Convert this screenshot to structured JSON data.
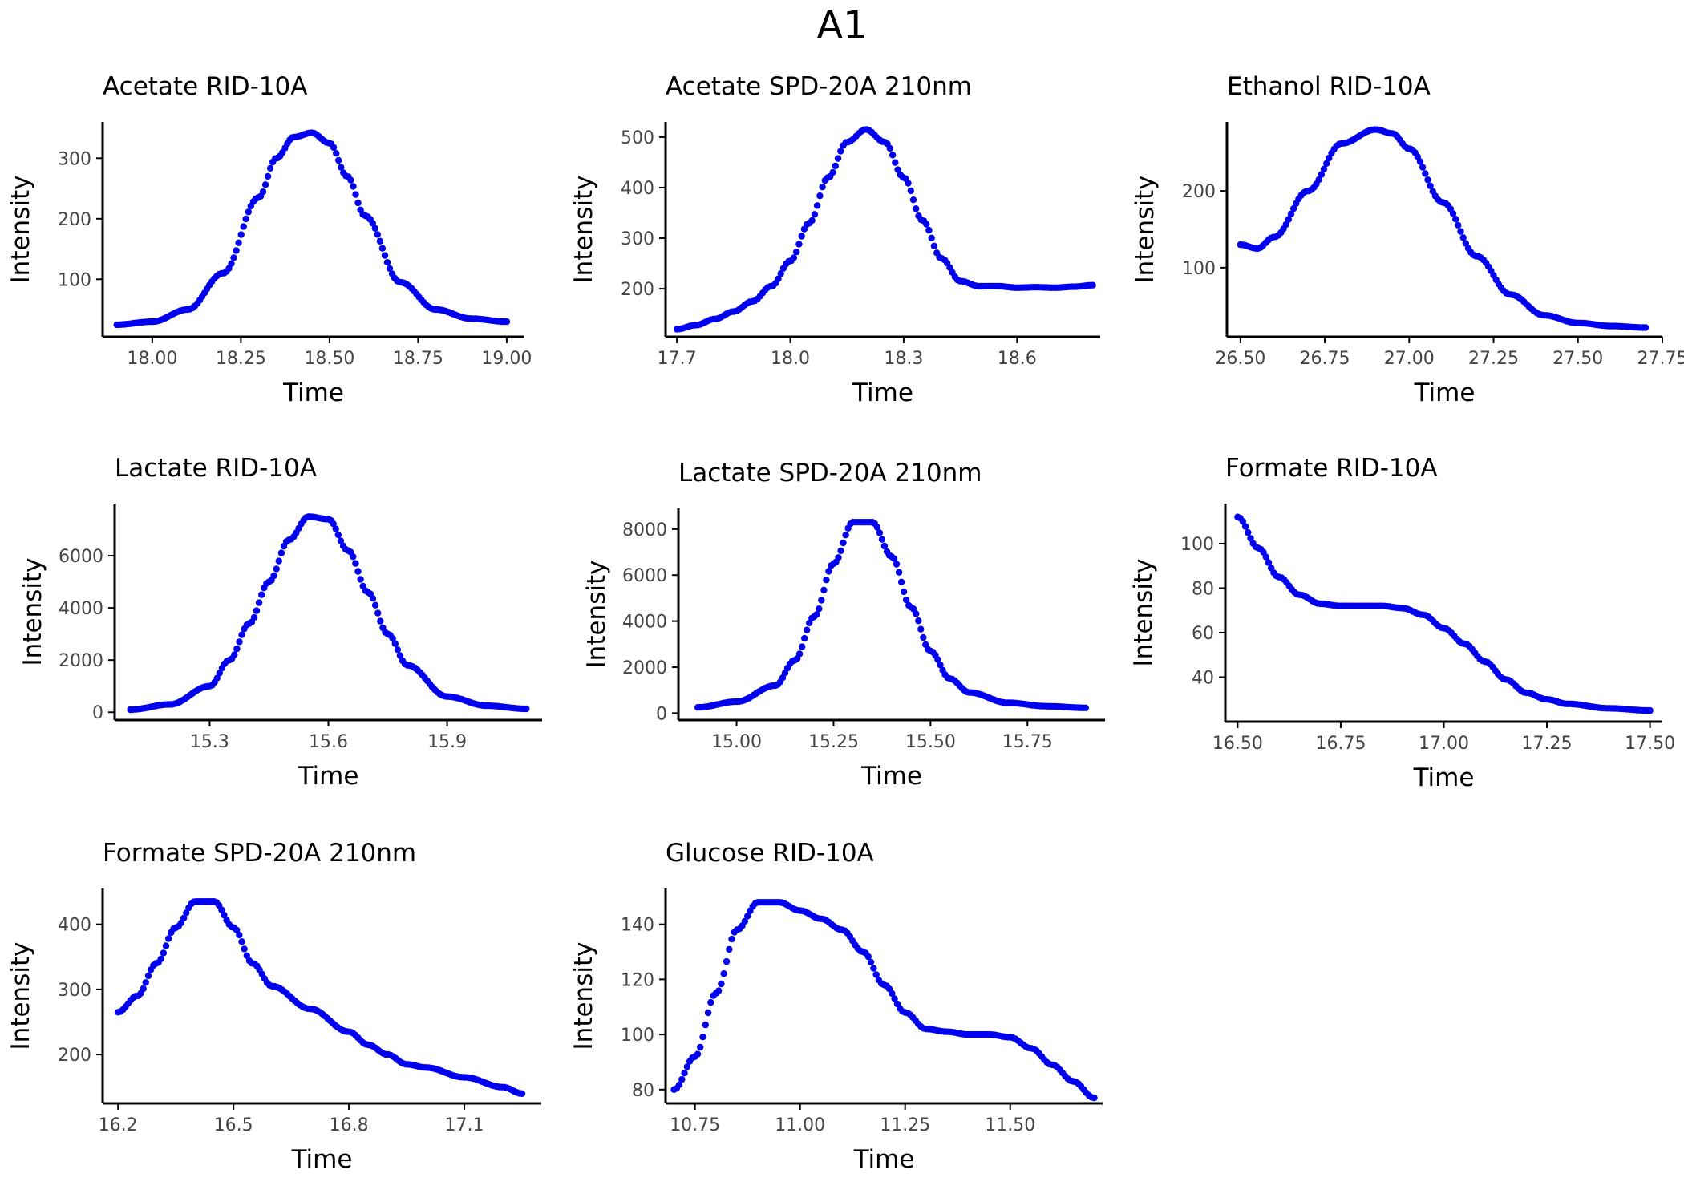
{
  "title": "A1",
  "colors": {
    "series": "#0000ee",
    "axis": "#000000",
    "tick_label": "#444444"
  },
  "chart_data": [
    {
      "type": "scatter",
      "title": "Acetate RID-10A",
      "xlabel": "Time",
      "ylabel": "Intensity",
      "xlim": [
        17.86,
        19.05
      ],
      "ylim": [
        5,
        360
      ],
      "xticks": [
        18.0,
        18.25,
        18.5,
        18.75,
        19.0
      ],
      "xtick_labels": [
        "18.00",
        "18.25",
        "18.50",
        "18.75",
        "19.00"
      ],
      "yticks": [
        100,
        200,
        300
      ],
      "ytick_labels": [
        "100",
        "200",
        "300"
      ],
      "series": [
        {
          "x": [
            17.9,
            18.0,
            18.1,
            18.2,
            18.3,
            18.35,
            18.4,
            18.45,
            18.5,
            18.55,
            18.6,
            18.7,
            18.8,
            18.9,
            19.0
          ],
          "y": [
            25,
            30,
            50,
            110,
            235,
            300,
            335,
            342,
            325,
            270,
            205,
            95,
            50,
            35,
            30
          ]
        }
      ]
    },
    {
      "type": "scatter",
      "title": "Acetate SPD-20A 210nm",
      "xlabel": "Time",
      "ylabel": "Intensity",
      "xlim": [
        17.67,
        18.82
      ],
      "ylim": [
        105,
        530
      ],
      "xticks": [
        17.7,
        18.0,
        18.3,
        18.6
      ],
      "xtick_labels": [
        "17.7",
        "18.0",
        "18.3",
        "18.6"
      ],
      "yticks": [
        200,
        300,
        400,
        500
      ],
      "ytick_labels": [
        "200",
        "300",
        "400",
        "500"
      ],
      "series": [
        {
          "x": [
            17.7,
            17.75,
            17.8,
            17.85,
            17.9,
            17.95,
            18.0,
            18.05,
            18.1,
            18.15,
            18.2,
            18.25,
            18.3,
            18.35,
            18.4,
            18.45,
            18.5,
            18.55,
            18.6,
            18.65,
            18.7,
            18.75,
            18.8
          ],
          "y": [
            120,
            128,
            140,
            155,
            175,
            205,
            255,
            330,
            420,
            490,
            515,
            490,
            420,
            335,
            260,
            215,
            205,
            205,
            202,
            203,
            202,
            204,
            207
          ]
        }
      ]
    },
    {
      "type": "scatter",
      "title": "Ethanol RID-10A",
      "xlabel": "Time",
      "ylabel": "Intensity",
      "xlim": [
        26.46,
        27.75
      ],
      "ylim": [
        10,
        290
      ],
      "xticks": [
        26.5,
        26.75,
        27.0,
        27.25,
        27.5,
        27.75
      ],
      "xtick_labels": [
        "26.50",
        "26.75",
        "27.00",
        "27.25",
        "27.50",
        "27.75"
      ],
      "yticks": [
        100,
        200
      ],
      "ytick_labels": [
        "100",
        "200"
      ],
      "series": [
        {
          "x": [
            26.5,
            26.55,
            26.6,
            26.7,
            26.8,
            26.9,
            26.95,
            27.0,
            27.1,
            27.2,
            27.3,
            27.4,
            27.5,
            27.6,
            27.7
          ],
          "y": [
            130,
            125,
            140,
            200,
            262,
            280,
            275,
            255,
            185,
            115,
            65,
            38,
            28,
            24,
            22
          ]
        }
      ]
    },
    {
      "type": "scatter",
      "title": "Lactate RID-10A",
      "xlabel": "Time",
      "ylabel": "Intensity",
      "xlim": [
        15.06,
        16.14
      ],
      "ylim": [
        -300,
        8000
      ],
      "xticks": [
        15.3,
        15.6,
        15.9
      ],
      "xtick_labels": [
        "15.3",
        "15.6",
        "15.9"
      ],
      "yticks": [
        0,
        2000,
        4000,
        6000
      ],
      "ytick_labels": [
        "0",
        "2000",
        "4000",
        "6000"
      ],
      "series": [
        {
          "x": [
            15.1,
            15.2,
            15.3,
            15.35,
            15.4,
            15.45,
            15.5,
            15.55,
            15.6,
            15.65,
            15.7,
            15.75,
            15.8,
            15.9,
            16.0,
            16.1
          ],
          "y": [
            100,
            300,
            1000,
            2000,
            3400,
            5000,
            6600,
            7500,
            7400,
            6200,
            4600,
            3000,
            1800,
            600,
            250,
            130
          ]
        }
      ]
    },
    {
      "type": "scatter",
      "title": "Lactate SPD-20A 210nm",
      "xlabel": "Time",
      "ylabel": "Intensity",
      "xlim": [
        14.85,
        15.95
      ],
      "ylim": [
        -300,
        8900
      ],
      "xticks": [
        15.0,
        15.25,
        15.5,
        15.75
      ],
      "xtick_labels": [
        "15.00",
        "15.25",
        "15.50",
        "15.75"
      ],
      "yticks": [
        0,
        2000,
        4000,
        6000,
        8000
      ],
      "ytick_labels": [
        "0",
        "2000",
        "4000",
        "6000",
        "8000"
      ],
      "series": [
        {
          "x": [
            14.9,
            15.0,
            15.1,
            15.15,
            15.2,
            15.25,
            15.3,
            15.35,
            15.4,
            15.45,
            15.5,
            15.55,
            15.6,
            15.7,
            15.8,
            15.9
          ],
          "y": [
            250,
            500,
            1200,
            2300,
            4200,
            6500,
            8300,
            8300,
            6800,
            4600,
            2700,
            1500,
            900,
            450,
            300,
            230
          ]
        }
      ]
    },
    {
      "type": "scatter",
      "title": "Formate RID-10A",
      "xlabel": "Time",
      "ylabel": "Intensity",
      "xlim": [
        16.47,
        17.53
      ],
      "ylim": [
        20,
        118
      ],
      "xticks": [
        16.5,
        16.75,
        17.0,
        17.25,
        17.5
      ],
      "xtick_labels": [
        "16.50",
        "16.75",
        "17.00",
        "17.25",
        "17.50"
      ],
      "yticks": [
        40,
        60,
        80,
        100
      ],
      "ytick_labels": [
        "40",
        "60",
        "80",
        "100"
      ],
      "series": [
        {
          "x": [
            16.5,
            16.55,
            16.6,
            16.65,
            16.7,
            16.75,
            16.8,
            16.85,
            16.9,
            16.95,
            17.0,
            17.05,
            17.1,
            17.15,
            17.2,
            17.25,
            17.3,
            17.4,
            17.5
          ],
          "y": [
            112,
            98,
            85,
            77,
            73,
            72,
            72,
            72,
            71,
            68,
            62,
            55,
            47,
            39,
            33,
            30,
            28,
            26,
            25
          ]
        }
      ]
    },
    {
      "type": "scatter",
      "title": "Formate SPD-20A 210nm",
      "xlabel": "Time",
      "ylabel": "Intensity",
      "xlim": [
        16.16,
        17.3
      ],
      "ylim": [
        125,
        455
      ],
      "xticks": [
        16.2,
        16.5,
        16.8,
        17.1
      ],
      "xtick_labels": [
        "16.2",
        "16.5",
        "16.8",
        "17.1"
      ],
      "yticks": [
        200,
        300,
        400
      ],
      "ytick_labels": [
        "200",
        "300",
        "400"
      ],
      "series": [
        {
          "x": [
            16.2,
            16.25,
            16.3,
            16.35,
            16.4,
            16.45,
            16.5,
            16.55,
            16.6,
            16.7,
            16.8,
            16.85,
            16.9,
            16.95,
            17.0,
            17.1,
            17.2,
            17.25
          ],
          "y": [
            265,
            290,
            340,
            395,
            435,
            435,
            395,
            340,
            305,
            270,
            235,
            215,
            200,
            185,
            180,
            165,
            150,
            140
          ]
        }
      ]
    },
    {
      "type": "scatter",
      "title": "Glucose RID-10A",
      "xlabel": "Time",
      "ylabel": "Intensity",
      "xlim": [
        10.68,
        11.72
      ],
      "ylim": [
        75,
        153
      ],
      "xticks": [
        10.75,
        11.0,
        11.25,
        11.5
      ],
      "xtick_labels": [
        "10.75",
        "11.00",
        "11.25",
        "11.50"
      ],
      "yticks": [
        80,
        100,
        120,
        140
      ],
      "ytick_labels": [
        "80",
        "100",
        "120",
        "140"
      ],
      "series": [
        {
          "x": [
            10.7,
            10.75,
            10.8,
            10.85,
            10.9,
            10.95,
            11.0,
            11.05,
            11.1,
            11.15,
            11.2,
            11.25,
            11.3,
            11.35,
            11.4,
            11.45,
            11.5,
            11.55,
            11.6,
            11.65,
            11.7
          ],
          "y": [
            80,
            92,
            115,
            138,
            148,
            148,
            145,
            142,
            138,
            130,
            118,
            108,
            102,
            101,
            100,
            100,
            99,
            95,
            89,
            83,
            77
          ]
        }
      ]
    }
  ]
}
